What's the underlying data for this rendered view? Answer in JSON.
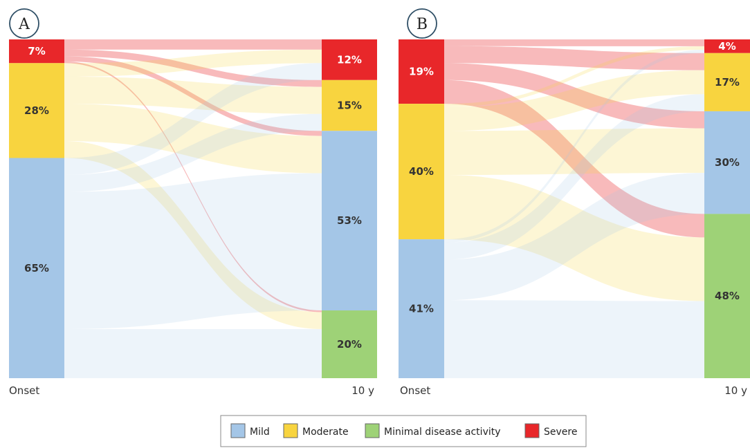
{
  "categories": {
    "mild": {
      "label": "Mild",
      "color": "#a4c6e7"
    },
    "moderate": {
      "label": "Moderate",
      "color": "#f8d43f"
    },
    "minimal": {
      "label": "Minimal disease activity",
      "color": "#9ed277"
    },
    "severe": {
      "label": "Severe",
      "color": "#e8272a"
    }
  },
  "legend_order": [
    "mild",
    "moderate",
    "minimal",
    "severe"
  ],
  "chart_data": [
    {
      "type": "sankey",
      "panel_label": "A",
      "x_labels": [
        "Onset",
        "10 y"
      ],
      "onset": [
        {
          "category": "severe",
          "value": 7,
          "label": "7%"
        },
        {
          "category": "moderate",
          "value": 28,
          "label": "28%"
        },
        {
          "category": "mild",
          "value": 65,
          "label": "65%"
        }
      ],
      "ten_years": [
        {
          "category": "severe",
          "value": 12,
          "label": "12%"
        },
        {
          "category": "moderate",
          "value": 15,
          "label": "15%"
        },
        {
          "category": "mild",
          "value": 53,
          "label": "53%"
        },
        {
          "category": "minimal",
          "value": 20,
          "label": "20%"
        }
      ],
      "flows": [
        {
          "from": "severe",
          "to": "severe",
          "value": 3
        },
        {
          "from": "severe",
          "to": "moderate",
          "value": 2
        },
        {
          "from": "severe",
          "to": "mild",
          "value": 1.5
        },
        {
          "from": "severe",
          "to": "minimal",
          "value": 0.5
        },
        {
          "from": "moderate",
          "to": "severe",
          "value": 4
        },
        {
          "from": "moderate",
          "to": "moderate",
          "value": 8
        },
        {
          "from": "moderate",
          "to": "mild",
          "value": 11
        },
        {
          "from": "moderate",
          "to": "minimal",
          "value": 5
        },
        {
          "from": "mild",
          "to": "severe",
          "value": 5
        },
        {
          "from": "mild",
          "to": "moderate",
          "value": 5
        },
        {
          "from": "mild",
          "to": "mild",
          "value": 40.5
        },
        {
          "from": "mild",
          "to": "minimal",
          "value": 14.5
        }
      ]
    },
    {
      "type": "sankey",
      "panel_label": "B",
      "x_labels": [
        "Onset",
        "10 y"
      ],
      "onset": [
        {
          "category": "severe",
          "value": 19,
          "label": "19%"
        },
        {
          "category": "moderate",
          "value": 40,
          "label": "40%"
        },
        {
          "category": "mild",
          "value": 41,
          "label": "41%"
        }
      ],
      "ten_years": [
        {
          "category": "severe",
          "value": 4,
          "label": "4%"
        },
        {
          "category": "moderate",
          "value": 17,
          "label": "17%"
        },
        {
          "category": "mild",
          "value": 30,
          "label": "30%"
        },
        {
          "category": "minimal",
          "value": 48,
          "label": "48%"
        }
      ],
      "flows": [
        {
          "from": "severe",
          "to": "severe",
          "value": 2
        },
        {
          "from": "severe",
          "to": "moderate",
          "value": 5
        },
        {
          "from": "severe",
          "to": "mild",
          "value": 5
        },
        {
          "from": "severe",
          "to": "minimal",
          "value": 7
        },
        {
          "from": "moderate",
          "to": "severe",
          "value": 1
        },
        {
          "from": "moderate",
          "to": "moderate",
          "value": 7
        },
        {
          "from": "moderate",
          "to": "mild",
          "value": 13
        },
        {
          "from": "moderate",
          "to": "minimal",
          "value": 19
        },
        {
          "from": "mild",
          "to": "severe",
          "value": 1
        },
        {
          "from": "mild",
          "to": "moderate",
          "value": 5
        },
        {
          "from": "mild",
          "to": "mild",
          "value": 12
        },
        {
          "from": "mild",
          "to": "minimal",
          "value": 23
        }
      ]
    }
  ]
}
